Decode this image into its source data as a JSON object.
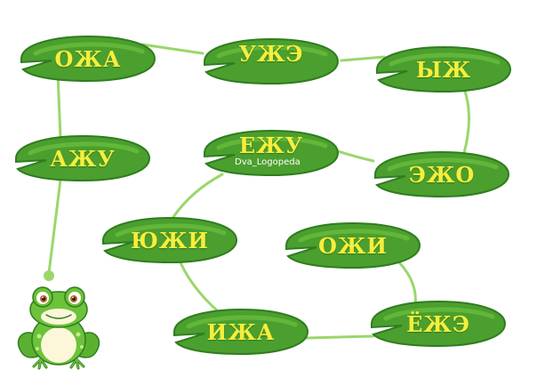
{
  "colors": {
    "pad_dark": "#2f7d1f",
    "pad_mid": "#4b9f2e",
    "pad_light": "#6cc13f",
    "path": "#9ad76b",
    "label": "#f7ee3c",
    "frog_body": "#6cc23a",
    "frog_belly": "#fbf7d8"
  },
  "pads": [
    {
      "id": "pad-ozha",
      "label": "ОЖА"
    },
    {
      "id": "pad-uzhe",
      "label": "УЖЭ"
    },
    {
      "id": "pad-yzh",
      "label": "ЫЖ"
    },
    {
      "id": "pad-azhu",
      "label": "АЖУ"
    },
    {
      "id": "pad-ezhu-top",
      "label": "ЕЖУ"
    },
    {
      "id": "pad-ezho",
      "label": "ЭЖО"
    },
    {
      "id": "pad-yuzhi",
      "label": "ЮЖИ"
    },
    {
      "id": "pad-ozhi",
      "label": "ОЖИ"
    },
    {
      "id": "pad-izha",
      "label": "ИЖА"
    },
    {
      "id": "pad-yozhe",
      "label": "ЁЖЭ"
    }
  ],
  "watermark": "Dva_Logopeda",
  "icons": {
    "frog": "frog-icon",
    "lily_pad": "lily-pad-icon"
  }
}
